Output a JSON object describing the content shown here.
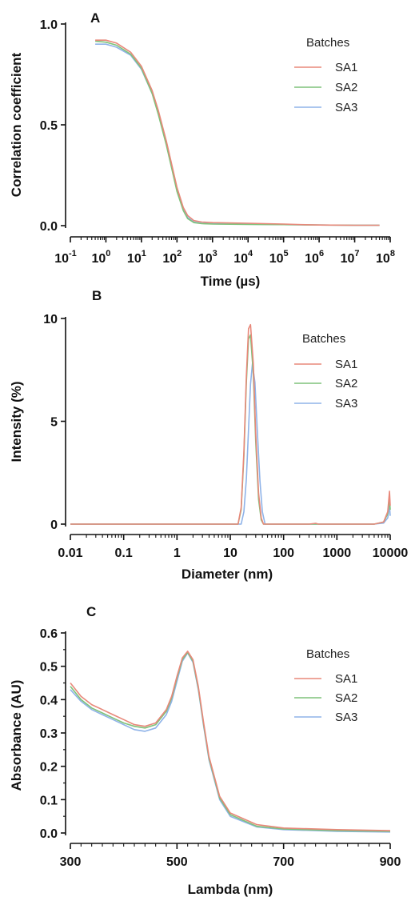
{
  "colors": {
    "SA1": "#e8887a",
    "SA2": "#7fc27a",
    "SA3": "#8fb3e8"
  },
  "chart_data": [
    {
      "panel": "A",
      "type": "line",
      "xscale": "log",
      "xlim": [
        0.1,
        100000000
      ],
      "ylim": [
        0,
        1.0
      ],
      "xlabel": "Time (µs)",
      "ylabel": "Correlation coefficient",
      "xtick_labels": [
        {
          "base": "10",
          "exp": "-1"
        },
        {
          "base": "10",
          "exp": "0"
        },
        {
          "base": "10",
          "exp": "1"
        },
        {
          "base": "10",
          "exp": "2"
        },
        {
          "base": "10",
          "exp": "3"
        },
        {
          "base": "10",
          "exp": "4"
        },
        {
          "base": "10",
          "exp": "5"
        },
        {
          "base": "10",
          "exp": "6"
        },
        {
          "base": "10",
          "exp": "7"
        },
        {
          "base": "10",
          "exp": "8"
        }
      ],
      "yticks": [
        0.0,
        0.5,
        1.0
      ],
      "ytick_labels": [
        "0.0",
        "0.5",
        "1.0"
      ],
      "legend_title": "Batches",
      "legend_placement": "top-right",
      "series": [
        {
          "name": "SA1",
          "x": [
            0.5,
            1,
            2,
            5,
            10,
            20,
            30,
            50,
            70,
            100,
            150,
            200,
            300,
            500,
            1000,
            10000,
            100000,
            300000,
            1000000,
            10000000,
            50000000
          ],
          "y": [
            0.92,
            0.92,
            0.905,
            0.86,
            0.79,
            0.67,
            0.57,
            0.42,
            0.31,
            0.19,
            0.09,
            0.05,
            0.025,
            0.018,
            0.015,
            0.012,
            0.008,
            0.005,
            0.003,
            0.002,
            0.002
          ]
        },
        {
          "name": "SA2",
          "x": [
            0.5,
            1,
            2,
            5,
            10,
            20,
            30,
            50,
            70,
            100,
            150,
            200,
            300,
            500,
            1000,
            10000,
            100000,
            300000,
            1000000,
            10000000,
            50000000
          ],
          "y": [
            0.915,
            0.91,
            0.895,
            0.85,
            0.78,
            0.655,
            0.55,
            0.4,
            0.29,
            0.17,
            0.075,
            0.035,
            0.015,
            0.01,
            0.008,
            0.006,
            0.005,
            0.004,
            0.003,
            0.002,
            0.002
          ]
        },
        {
          "name": "SA3",
          "x": [
            0.5,
            1,
            2,
            5,
            10,
            20,
            30,
            50,
            70,
            100,
            150,
            200,
            300,
            500,
            1000,
            10000,
            100000,
            300000,
            1000000,
            10000000,
            50000000
          ],
          "y": [
            0.9,
            0.9,
            0.885,
            0.845,
            0.775,
            0.655,
            0.555,
            0.41,
            0.3,
            0.18,
            0.085,
            0.04,
            0.018,
            0.012,
            0.009,
            0.007,
            0.005,
            0.004,
            0.003,
            0.002,
            0.002
          ]
        }
      ]
    },
    {
      "panel": "B",
      "type": "line",
      "xscale": "log",
      "xlim": [
        0.01,
        10000
      ],
      "ylim": [
        0,
        10
      ],
      "xlabel": "Diameter (nm)",
      "ylabel": "Intensity (%)",
      "xticks": [
        0.01,
        0.1,
        1,
        10,
        100,
        1000,
        10000
      ],
      "xtick_labels": [
        "0.01",
        "0.1",
        "1",
        "10",
        "100",
        "1000",
        "10000"
      ],
      "yticks": [
        0,
        5,
        10
      ],
      "ytick_labels": [
        "0",
        "5",
        "10"
      ],
      "legend_title": "Batches",
      "legend_placement": "top-right",
      "series": [
        {
          "name": "SA1",
          "x": [
            0.01,
            14,
            16,
            18,
            20,
            22,
            24,
            27,
            30,
            34,
            38,
            42,
            100,
            300,
            400,
            450,
            600,
            5000,
            7500,
            9000,
            9700,
            10000
          ],
          "y": [
            0,
            0,
            0.8,
            3.5,
            7.2,
            9.5,
            9.7,
            7.8,
            4.4,
            1.5,
            0.3,
            0,
            0,
            0,
            0.04,
            0,
            0,
            0,
            0.1,
            0.6,
            1.6,
            0.9
          ]
        },
        {
          "name": "SA2",
          "x": [
            0.01,
            14,
            16,
            18,
            20,
            22,
            24,
            27,
            30,
            34,
            38,
            42,
            100,
            5000,
            7500,
            9000,
            9700,
            10000
          ],
          "y": [
            0,
            0,
            0.7,
            3.3,
            6.9,
            9.0,
            9.2,
            7.3,
            4.0,
            1.2,
            0.2,
            0,
            0,
            0,
            0.1,
            0.5,
            1.3,
            0.7
          ]
        },
        {
          "name": "SA3",
          "x": [
            0.01,
            16,
            18,
            20,
            22,
            24,
            26,
            29,
            32,
            36,
            40,
            45,
            100,
            5000,
            7500,
            9000,
            9700,
            10000
          ],
          "y": [
            0,
            0,
            0.6,
            2.2,
            4.6,
            6.8,
            7.8,
            6.9,
            4.6,
            2.1,
            0.6,
            0,
            0,
            0,
            0.05,
            0.3,
            0.9,
            0.4
          ]
        }
      ]
    },
    {
      "panel": "C",
      "type": "line",
      "xscale": "linear",
      "xlim": [
        300,
        900
      ],
      "ylim": [
        0,
        0.6
      ],
      "xlabel": "Lambda (nm)",
      "ylabel": "Absorbance (AU)",
      "xticks": [
        300,
        500,
        700,
        900
      ],
      "xtick_labels": [
        "300",
        "500",
        "700",
        "900"
      ],
      "yticks": [
        0.0,
        0.1,
        0.2,
        0.3,
        0.4,
        0.5,
        0.6
      ],
      "ytick_labels": [
        "0.0",
        "0.1",
        "0.2",
        "0.3",
        "0.4",
        "0.5",
        "0.6"
      ],
      "legend_title": "Batches",
      "legend_placement": "top-right",
      "series": [
        {
          "name": "SA1",
          "x": [
            300,
            320,
            340,
            360,
            380,
            400,
            420,
            440,
            460,
            480,
            490,
            500,
            510,
            520,
            530,
            540,
            550,
            560,
            580,
            600,
            650,
            700,
            800,
            900
          ],
          "y": [
            0.45,
            0.41,
            0.385,
            0.37,
            0.355,
            0.34,
            0.325,
            0.32,
            0.33,
            0.37,
            0.41,
            0.47,
            0.525,
            0.545,
            0.52,
            0.44,
            0.33,
            0.23,
            0.11,
            0.06,
            0.025,
            0.015,
            0.01,
            0.007
          ]
        },
        {
          "name": "SA2",
          "x": [
            300,
            320,
            340,
            360,
            380,
            400,
            420,
            440,
            460,
            480,
            490,
            500,
            510,
            520,
            530,
            540,
            550,
            560,
            580,
            600,
            650,
            700,
            800,
            900
          ],
          "y": [
            0.44,
            0.4,
            0.375,
            0.36,
            0.345,
            0.33,
            0.32,
            0.315,
            0.325,
            0.365,
            0.405,
            0.465,
            0.52,
            0.542,
            0.515,
            0.435,
            0.325,
            0.225,
            0.105,
            0.055,
            0.02,
            0.012,
            0.007,
            0.005
          ]
        },
        {
          "name": "SA3",
          "x": [
            300,
            320,
            340,
            360,
            380,
            400,
            420,
            440,
            460,
            480,
            490,
            500,
            510,
            520,
            530,
            540,
            550,
            560,
            580,
            600,
            650,
            700,
            800,
            900
          ],
          "y": [
            0.43,
            0.395,
            0.37,
            0.355,
            0.34,
            0.325,
            0.31,
            0.305,
            0.315,
            0.355,
            0.395,
            0.455,
            0.515,
            0.54,
            0.512,
            0.43,
            0.32,
            0.22,
            0.1,
            0.05,
            0.018,
            0.01,
            0.005,
            0.003
          ]
        }
      ]
    }
  ]
}
